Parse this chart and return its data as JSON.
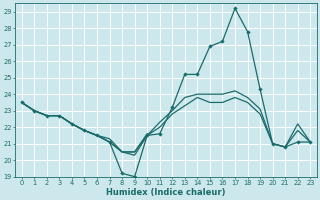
{
  "xlabel": "Humidex (Indice chaleur)",
  "bg_color": "#cce8ec",
  "grid_color": "#ffffff",
  "line_color": "#1a6b6b",
  "xlim": [
    -0.5,
    23.5
  ],
  "ylim": [
    19,
    29.5
  ],
  "yticks": [
    19,
    20,
    21,
    22,
    23,
    24,
    25,
    26,
    27,
    28,
    29
  ],
  "xticks": [
    0,
    1,
    2,
    3,
    4,
    5,
    6,
    7,
    8,
    9,
    10,
    11,
    12,
    13,
    14,
    15,
    16,
    17,
    18,
    19,
    20,
    21,
    22,
    23
  ],
  "line1_x": [
    0,
    1,
    2,
    3,
    4,
    5,
    6,
    7,
    8,
    9,
    10,
    11,
    12,
    13,
    14,
    15,
    16,
    17,
    18,
    19,
    20,
    21,
    22,
    23
  ],
  "line1_y": [
    23.5,
    23.0,
    22.7,
    22.7,
    22.2,
    21.8,
    21.5,
    21.1,
    19.2,
    19.0,
    21.5,
    21.6,
    23.2,
    25.2,
    25.2,
    26.9,
    27.2,
    29.2,
    27.8,
    24.3,
    21.0,
    20.8,
    21.1,
    21.1
  ],
  "line2_x": [
    0,
    1,
    2,
    3,
    4,
    5,
    6,
    7,
    8,
    9,
    10,
    11,
    12,
    13,
    14,
    15,
    16,
    17,
    18,
    19,
    20,
    21,
    22,
    23
  ],
  "line2_y": [
    23.5,
    23.0,
    22.7,
    22.7,
    22.2,
    21.8,
    21.5,
    21.1,
    20.5,
    20.5,
    21.5,
    22.3,
    23.0,
    23.8,
    24.0,
    24.0,
    24.0,
    24.2,
    23.8,
    23.1,
    21.0,
    20.8,
    22.2,
    21.1
  ],
  "line3_x": [
    0,
    1,
    2,
    3,
    4,
    5,
    6,
    7,
    8,
    9,
    10,
    11,
    12,
    13,
    14,
    15,
    16,
    17,
    18,
    19,
    20,
    21,
    22,
    23
  ],
  "line3_y": [
    23.5,
    23.0,
    22.7,
    22.7,
    22.2,
    21.8,
    21.5,
    21.1,
    20.5,
    20.3,
    21.5,
    22.0,
    22.8,
    23.3,
    23.8,
    23.5,
    23.5,
    23.8,
    23.5,
    22.8,
    21.0,
    20.8,
    21.8,
    21.1
  ],
  "line4_x": [
    0,
    1,
    2,
    3,
    4,
    5,
    6,
    7,
    8,
    9,
    10
  ],
  "line4_y": [
    23.5,
    23.0,
    22.7,
    22.7,
    22.2,
    21.8,
    21.5,
    21.3,
    20.5,
    20.5,
    21.6
  ]
}
